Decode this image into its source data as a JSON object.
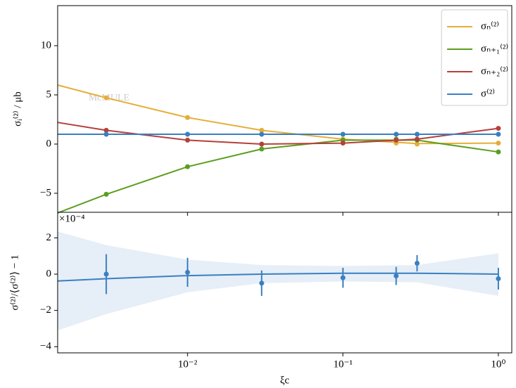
{
  "chart_data": [
    {
      "type": "line",
      "ylabel": "σᵢ⁽²⁾ / μb",
      "watermark": "McMULE",
      "x": [
        0.003,
        0.01,
        0.03,
        0.1,
        0.22,
        0.3,
        1.0
      ],
      "curve_x": [
        0.00146,
        0.003,
        0.01,
        0.03,
        0.1,
        0.3,
        1.0
      ],
      "xlim": [
        0.00146,
        1.22
      ],
      "xscale": "log",
      "ylim": [
        -6.93,
        14.07
      ],
      "yticks": [
        {
          "value": -5,
          "label": "−5"
        },
        0,
        5,
        10
      ],
      "legend": "upper right",
      "series": [
        {
          "name": "σₙ⁽²⁾",
          "color": "#e5ae38",
          "values": [
            4.7,
            2.7,
            1.4,
            0.5,
            0.1,
            0.0,
            0.1
          ],
          "curve": [
            6.0,
            4.7,
            2.7,
            1.4,
            0.5,
            0.05,
            0.1
          ]
        },
        {
          "name": "σₙ₊₁⁽²⁾",
          "color": "#5a9e1f",
          "values": [
            -5.1,
            -2.3,
            -0.5,
            0.4,
            0.5,
            0.4,
            -0.8
          ],
          "curve": [
            -7.0,
            -5.1,
            -2.3,
            -0.5,
            0.4,
            0.4,
            -0.8
          ]
        },
        {
          "name": "σₙ₊₂⁽²⁾",
          "color": "#b5403a",
          "values": [
            1.4,
            0.4,
            0.0,
            0.1,
            0.4,
            0.5,
            1.6
          ],
          "curve": [
            2.2,
            1.4,
            0.4,
            0.0,
            0.1,
            0.5,
            1.6
          ]
        },
        {
          "name": "σ⁽²⁾",
          "color": "#3a7fc1",
          "values": [
            1.0,
            1.0,
            1.0,
            1.0,
            1.0,
            1.0,
            1.0
          ],
          "curve": [
            1.0,
            1.0,
            1.0,
            1.0,
            1.0,
            1.0,
            1.0
          ]
        }
      ]
    },
    {
      "type": "errorbar",
      "ylabel": "σ⁽²⁾/⟨σ⁽²⁾⟩ − 1",
      "xlabel": "ξc",
      "offset_label": "×10⁻⁴",
      "color": "#3a7fc1",
      "band_color": "#e6eef7",
      "x": [
        0.003,
        0.01,
        0.03,
        0.1,
        0.22,
        0.3,
        1.0
      ],
      "values": [
        0.0,
        0.1,
        -0.5,
        -0.2,
        -0.1,
        0.6,
        -0.25
      ],
      "errors": [
        1.1,
        0.8,
        0.7,
        0.55,
        0.5,
        0.45,
        0.6
      ],
      "curve_x": [
        0.00146,
        0.003,
        0.01,
        0.03,
        0.1,
        0.3,
        1.0
      ],
      "curve": [
        -0.38,
        -0.25,
        -0.08,
        0.0,
        0.05,
        0.05,
        0.0
      ],
      "band_upper": [
        2.35,
        1.6,
        0.8,
        0.5,
        0.45,
        0.5,
        1.15
      ],
      "band_lower": [
        -3.1,
        -2.2,
        -1.0,
        -0.5,
        -0.4,
        -0.45,
        -1.2
      ],
      "xlim": [
        0.00146,
        1.22
      ],
      "xscale": "log",
      "xticks": [
        {
          "value": 0.01,
          "label": "10⁻²"
        },
        {
          "value": 0.1,
          "label": "10⁻¹"
        },
        {
          "value": 1,
          "label": "10⁰"
        }
      ],
      "ylim": [
        -4.34,
        3.41
      ],
      "yticks": [
        {
          "value": -4,
          "label": "−4"
        },
        {
          "value": -2,
          "label": "−2"
        },
        0,
        2
      ]
    }
  ]
}
